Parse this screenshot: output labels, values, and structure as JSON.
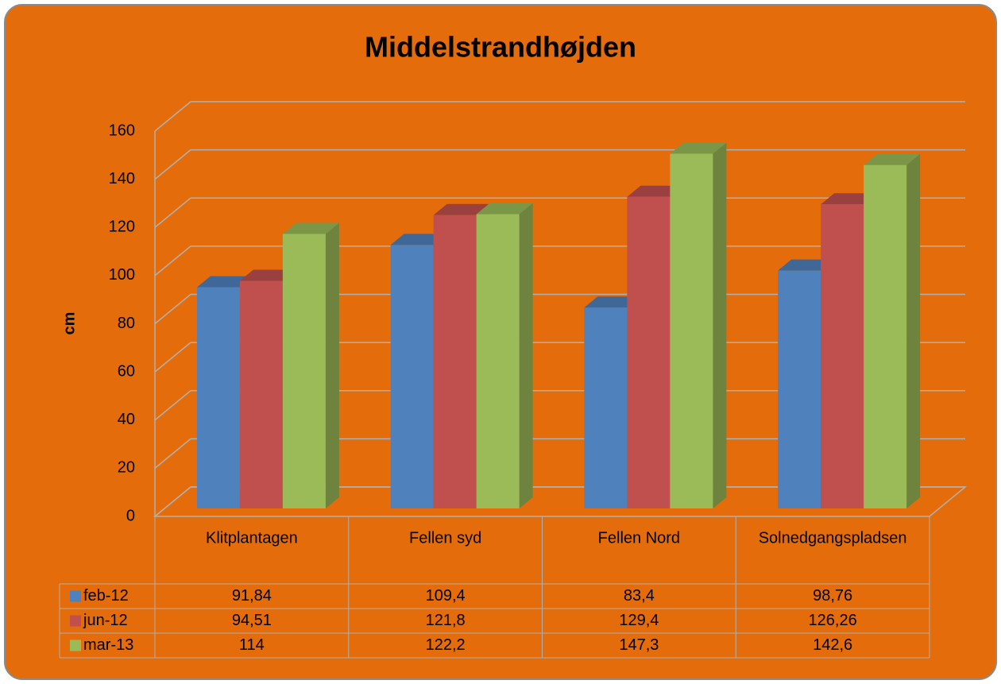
{
  "chart_data": {
    "type": "bar3d",
    "title": "Middelstrandhøjden",
    "y_label": "cm",
    "categories": [
      "Klitplantagen",
      "Fellen syd",
      "Fellen Nord",
      "Solnedgangspladsen"
    ],
    "series": [
      {
        "name": "feb-12",
        "color": "#4f81bd",
        "values": [
          91.84,
          109.4,
          83.4,
          98.76
        ],
        "value_labels": [
          "91,84",
          "109,4",
          "83,4",
          "98,76"
        ]
      },
      {
        "name": "jun-12",
        "color": "#c0504d",
        "values": [
          94.51,
          121.8,
          129.4,
          126.26
        ],
        "value_labels": [
          "94,51",
          "121,8",
          "129,4",
          "126,26"
        ]
      },
      {
        "name": "mar-13",
        "color": "#9bbb59",
        "values": [
          114,
          122.2,
          147.3,
          142.6
        ],
        "value_labels": [
          "114",
          "122,2",
          "147,3",
          "142,6"
        ]
      }
    ],
    "ylim": [
      0,
      160
    ],
    "yticks": [
      0,
      20,
      40,
      60,
      80,
      100,
      120,
      140,
      160
    ],
    "grid": true,
    "data_table": true
  }
}
